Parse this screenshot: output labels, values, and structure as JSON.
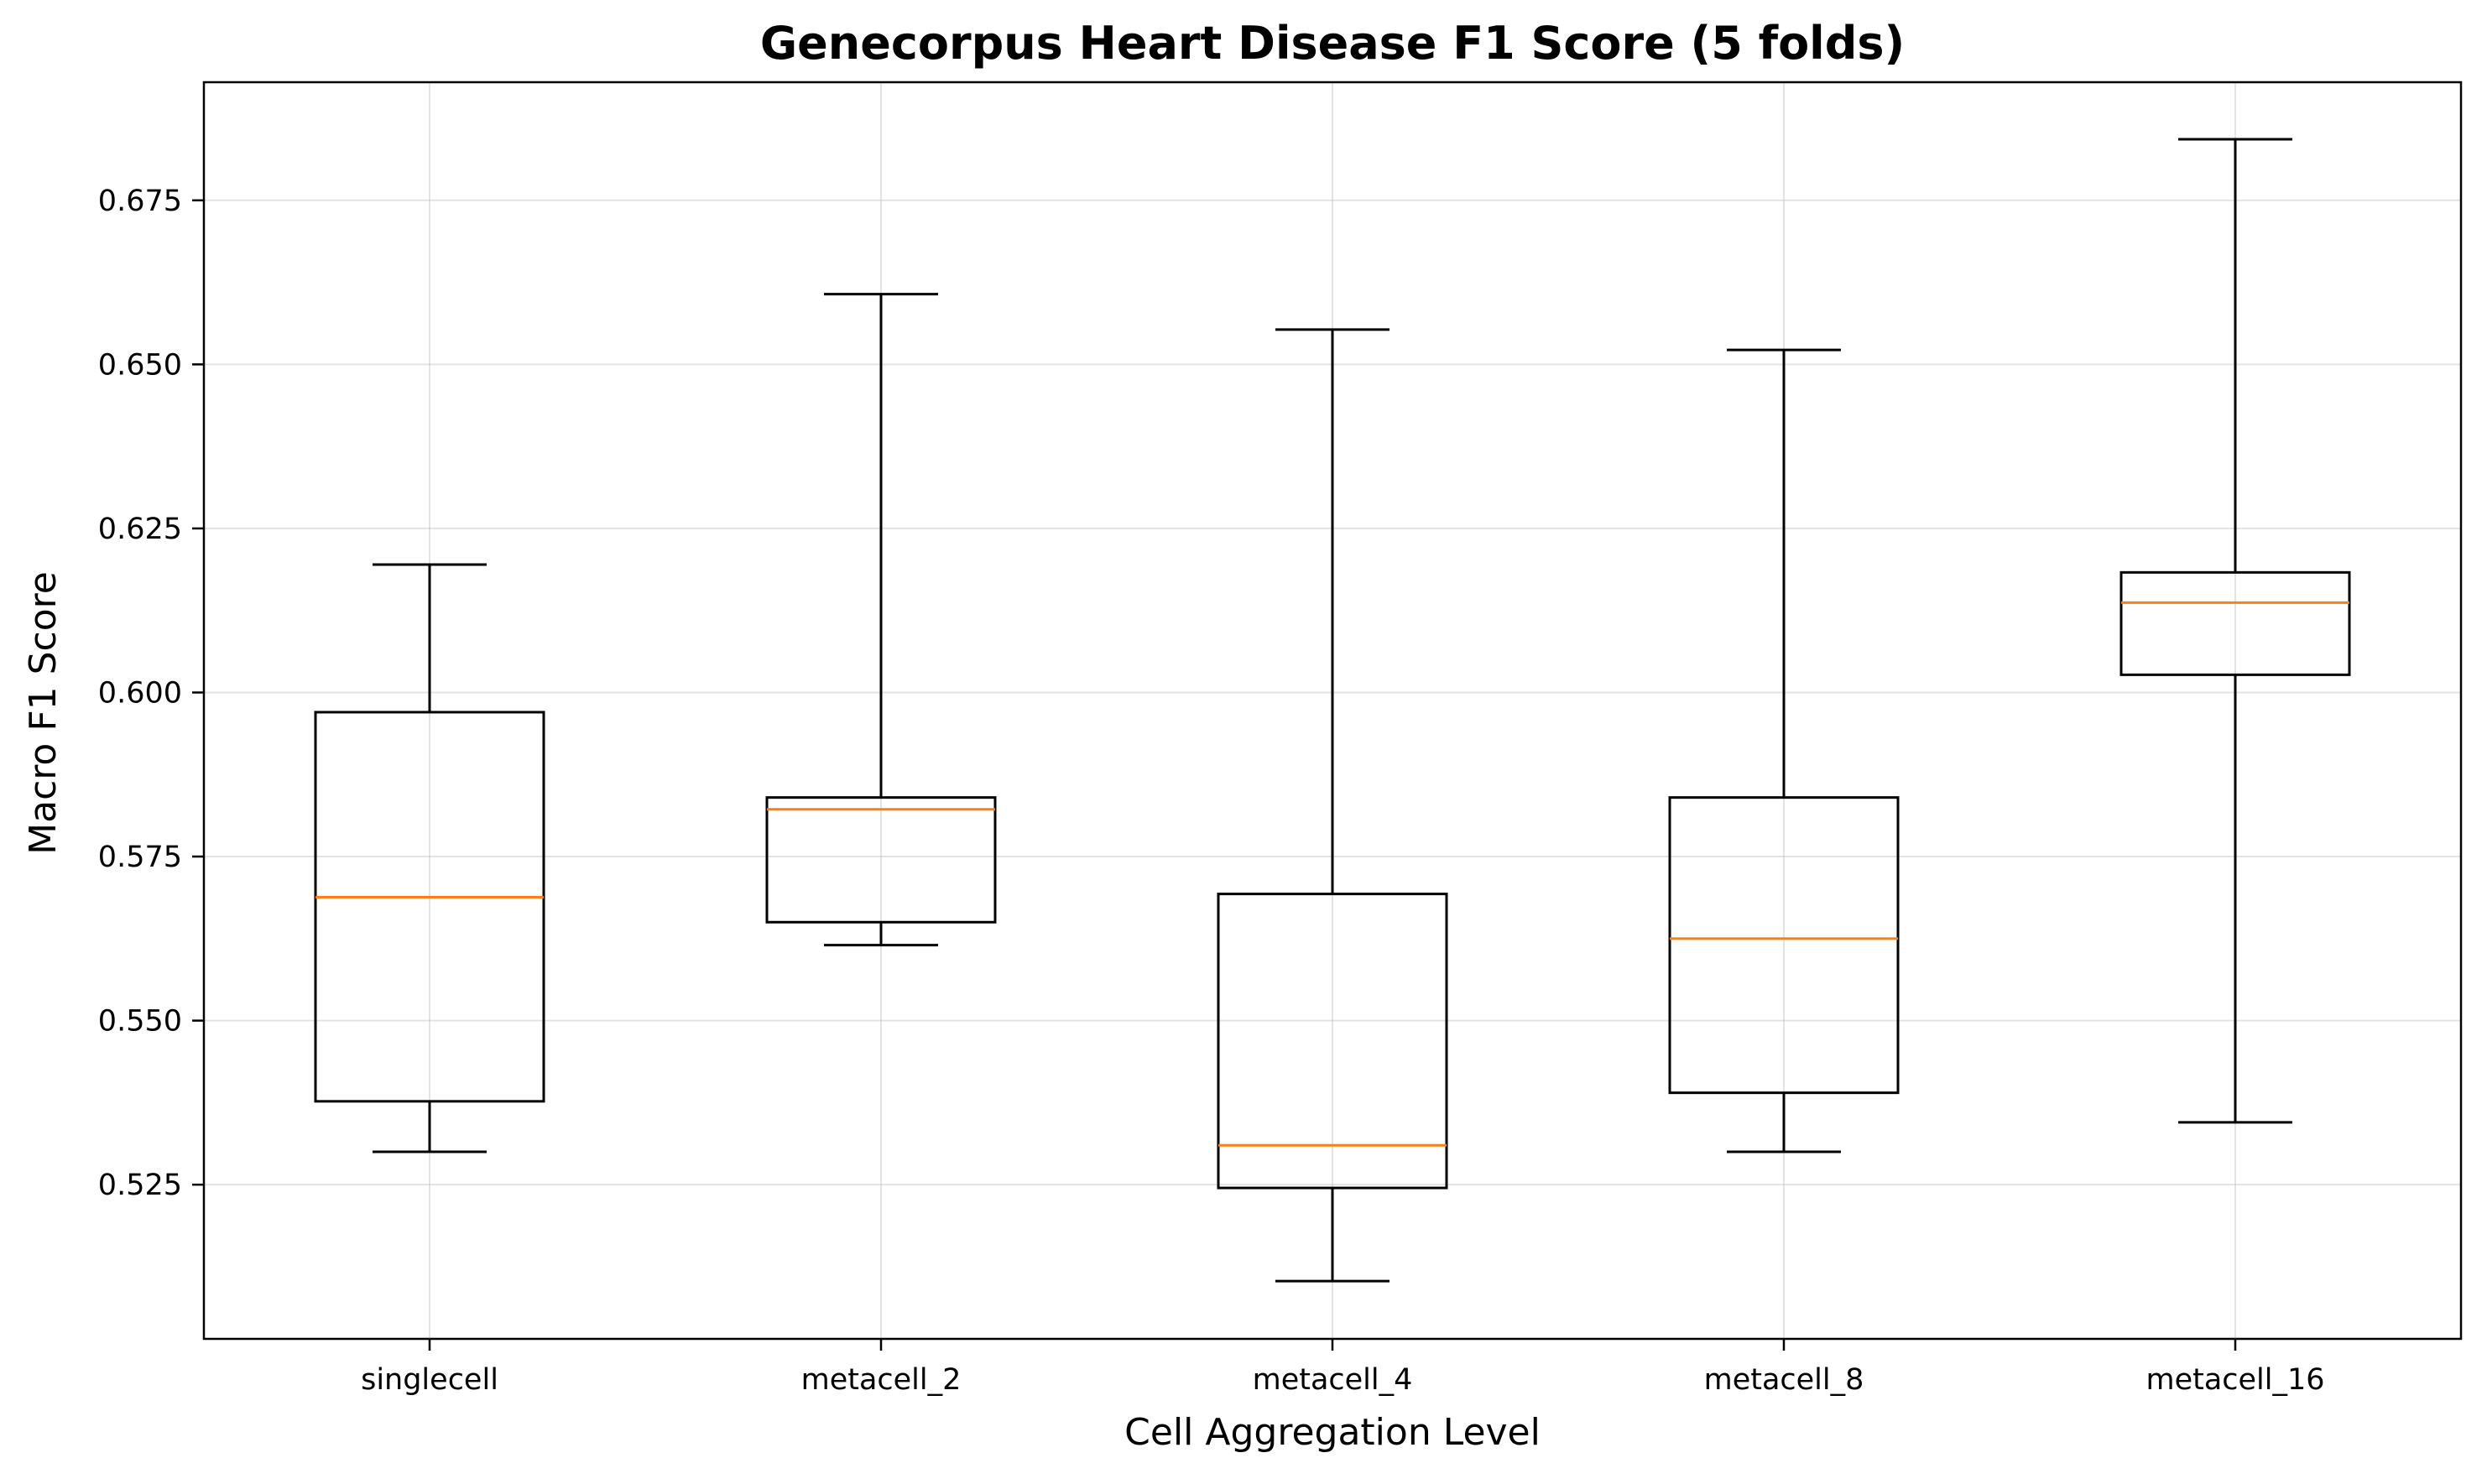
{
  "chart_data": {
    "type": "box",
    "title": "Genecorpus Heart Disease F1 Score (5 folds)",
    "xlabel": "Cell Aggregation Level",
    "ylabel": "Macro F1 Score",
    "categories": [
      "singlecell",
      "metacell_2",
      "metacell_4",
      "metacell_8",
      "metacell_16"
    ],
    "boxes": [
      {
        "category": "singlecell",
        "whisker_low": 0.53,
        "q1": 0.5377,
        "median": 0.5688,
        "q3": 0.597,
        "whisker_high": 0.6195
      },
      {
        "category": "metacell_2",
        "whisker_low": 0.5615,
        "q1": 0.565,
        "median": 0.5822,
        "q3": 0.584,
        "whisker_high": 0.6607
      },
      {
        "category": "metacell_4",
        "whisker_low": 0.5103,
        "q1": 0.5245,
        "median": 0.531,
        "q3": 0.5693,
        "whisker_high": 0.6553
      },
      {
        "category": "metacell_8",
        "whisker_low": 0.53,
        "q1": 0.539,
        "median": 0.5625,
        "q3": 0.584,
        "whisker_high": 0.6522
      },
      {
        "category": "metacell_16",
        "whisker_low": 0.5345,
        "q1": 0.6027,
        "median": 0.6137,
        "q3": 0.6183,
        "whisker_high": 0.6843
      }
    ],
    "yticks": [
      0.525,
      0.55,
      0.575,
      0.6,
      0.625,
      0.65,
      0.675
    ],
    "ytick_labels": [
      "0.525",
      "0.550",
      "0.575",
      "0.600",
      "0.625",
      "0.650",
      "0.675"
    ],
    "ylim": [
      0.5015,
      0.693
    ],
    "grid": true,
    "colors": {
      "box": "#000000",
      "median": "#ff7f0e",
      "grid": "#b0b0b0"
    }
  }
}
